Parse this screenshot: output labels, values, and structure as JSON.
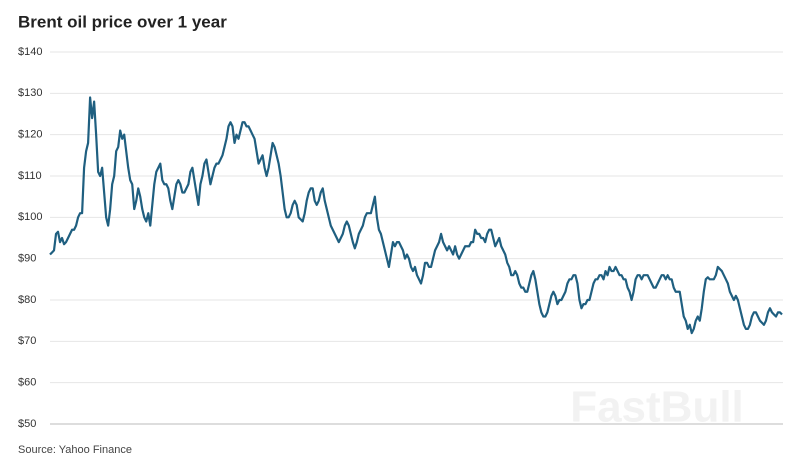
{
  "chart_data": {
    "type": "line",
    "title": "Brent oil price over 1 year",
    "source": "Source: Yahoo Finance",
    "watermark": "FastBull",
    "color": "#1f5f80",
    "grid": true,
    "ylim": [
      50,
      140
    ],
    "yticks": [
      {
        "value": 50,
        "label": "$50"
      },
      {
        "value": 60,
        "label": "$60"
      },
      {
        "value": 70,
        "label": "$70"
      },
      {
        "value": 80,
        "label": "$80"
      },
      {
        "value": 90,
        "label": "$90"
      },
      {
        "value": 100,
        "label": "$100"
      },
      {
        "value": 110,
        "label": "$110"
      },
      {
        "value": 120,
        "label": "$120"
      },
      {
        "value": 130,
        "label": "$130"
      },
      {
        "value": 140,
        "label": "$140"
      }
    ],
    "values": [
      91,
      91.5,
      92,
      96,
      96.5,
      94,
      95,
      93.5,
      94,
      95,
      96,
      97,
      97,
      98,
      100,
      101,
      101,
      112,
      116,
      118,
      129,
      124,
      128,
      120,
      111,
      110,
      112,
      106,
      100,
      98,
      102,
      108,
      110,
      116,
      117,
      121,
      119,
      120,
      116,
      112,
      109,
      108,
      102,
      104,
      107,
      105,
      102,
      100,
      99,
      101,
      98,
      103,
      108,
      111,
      112,
      113,
      109,
      108,
      108,
      107,
      104,
      102,
      105,
      108,
      109,
      108,
      106,
      106,
      107,
      108,
      111,
      112,
      109,
      106,
      103,
      108,
      110,
      113,
      114,
      111,
      108,
      110,
      112,
      113,
      113,
      114,
      115,
      117,
      119,
      122,
      123,
      122,
      118,
      120,
      119,
      121,
      123,
      123,
      122,
      122,
      121,
      120,
      119,
      116,
      113,
      114,
      115,
      112,
      110,
      112,
      115,
      118,
      117,
      115,
      113,
      110,
      106,
      102,
      100,
      100,
      101,
      103,
      104,
      103,
      100,
      99.5,
      99,
      101,
      104,
      106,
      107,
      107,
      104,
      103,
      104,
      106,
      107,
      104,
      102,
      100,
      98,
      97,
      96,
      95,
      94,
      95,
      96,
      98,
      99,
      98,
      96,
      94,
      92.5,
      94,
      96,
      97,
      98,
      100,
      101,
      101,
      101,
      103,
      105,
      100,
      97,
      96,
      94,
      92,
      90,
      88,
      91,
      94,
      93,
      94,
      94,
      93,
      92,
      90,
      91,
      90,
      88,
      87,
      88,
      86,
      85,
      84,
      86,
      89,
      89,
      88,
      88,
      90,
      92,
      93,
      94,
      96,
      94,
      93,
      92,
      93,
      92,
      91,
      93,
      91,
      90,
      91,
      92,
      93,
      93,
      93,
      94,
      94,
      97,
      96,
      96,
      95,
      95,
      94,
      96,
      97,
      97,
      95,
      93,
      94,
      95,
      93,
      92,
      91,
      89,
      88,
      86,
      86,
      87,
      86,
      84,
      83,
      83,
      82,
      82,
      84,
      86,
      87,
      85,
      82,
      79,
      77,
      76,
      76,
      77,
      79,
      81,
      82,
      81,
      79,
      80,
      80,
      81,
      82,
      84,
      85,
      85,
      86,
      86,
      84,
      80,
      78,
      79,
      79,
      80,
      80,
      82,
      84,
      85,
      85,
      86,
      86,
      85,
      87,
      86,
      88,
      87,
      87,
      88,
      87,
      86,
      86,
      85,
      85,
      83,
      82,
      80,
      82,
      85,
      86,
      86,
      85,
      86,
      86,
      86,
      85,
      84,
      83,
      83,
      84,
      85,
      86,
      86,
      85,
      86,
      85,
      85,
      83,
      82,
      82,
      82,
      79,
      76,
      75,
      73,
      74,
      72,
      73,
      75,
      76,
      75,
      78,
      82,
      85,
      85.5,
      85,
      85,
      85,
      86,
      88,
      87.5,
      87,
      86,
      85,
      84,
      82,
      81,
      80,
      81,
      80,
      78,
      76,
      74,
      73,
      73,
      74,
      76,
      77,
      77,
      76,
      75,
      74.5,
      74,
      75,
      77,
      78,
      77,
      76.5,
      76,
      77,
      77,
      76.5
    ]
  }
}
